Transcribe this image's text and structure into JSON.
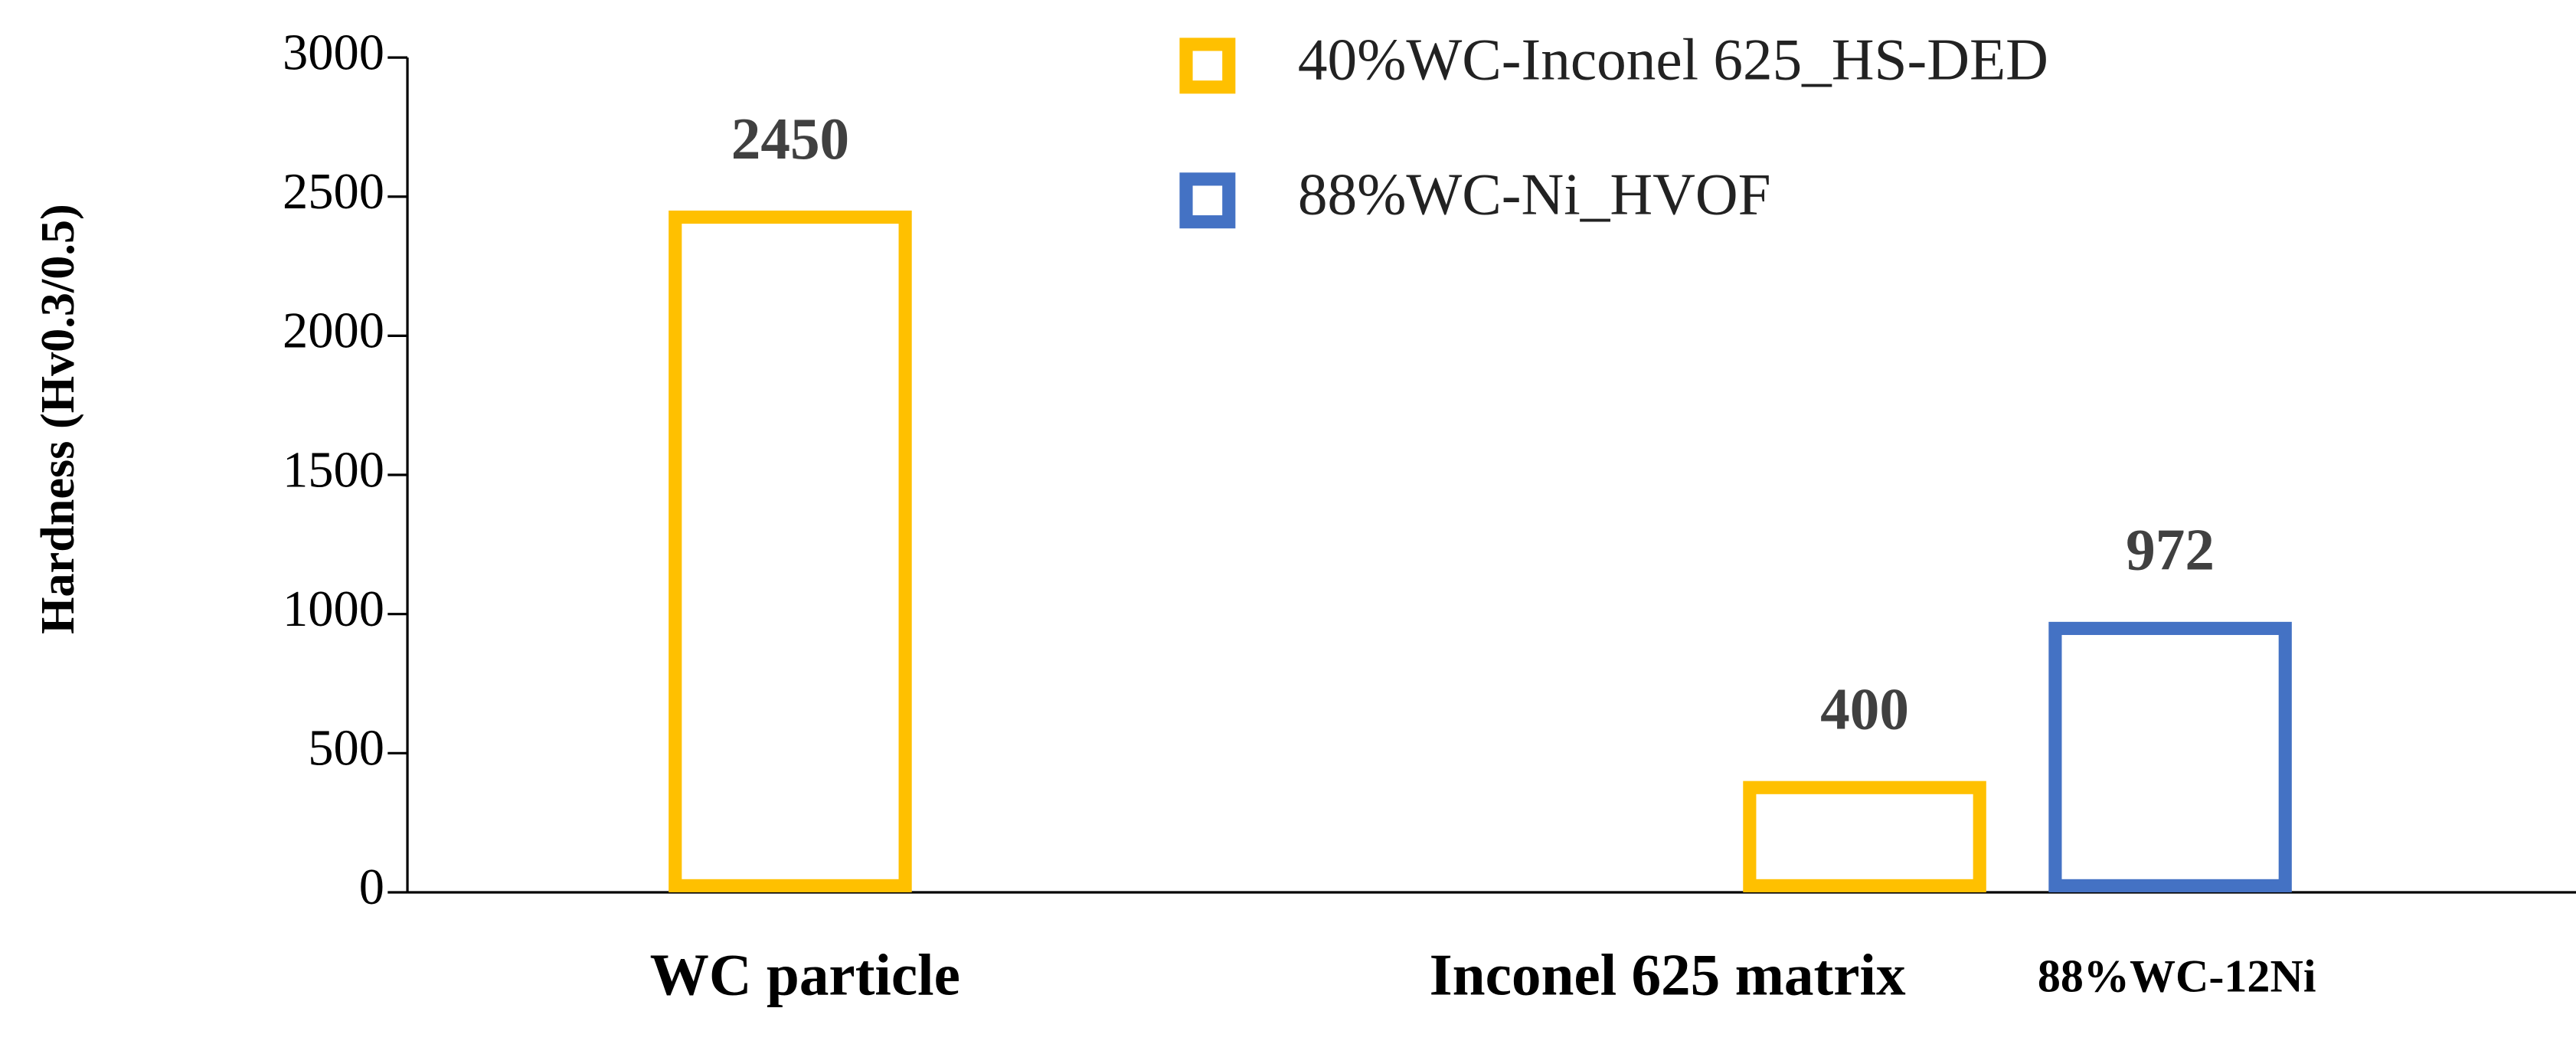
{
  "chart_data": {
    "type": "bar",
    "y_label": "Hardness (Hv0.3/0.5)",
    "categories": [
      "WC particle",
      "Inconel 625 matrix",
      "88%WC-12Ni"
    ],
    "series": [
      {
        "name": "40%WC-Inconel 625_HS-DED",
        "color": "#FFC000",
        "values": [
          2450,
          400,
          null
        ]
      },
      {
        "name": "88%WC-Ni_HVOF",
        "color": "#4472C4",
        "values": [
          null,
          null,
          972
        ]
      }
    ],
    "ylim": [
      0,
      3000
    ],
    "yticks": [
      0,
      500,
      1000,
      1500,
      2000,
      2500,
      3000
    ],
    "grid": false,
    "legend": "top-right"
  }
}
